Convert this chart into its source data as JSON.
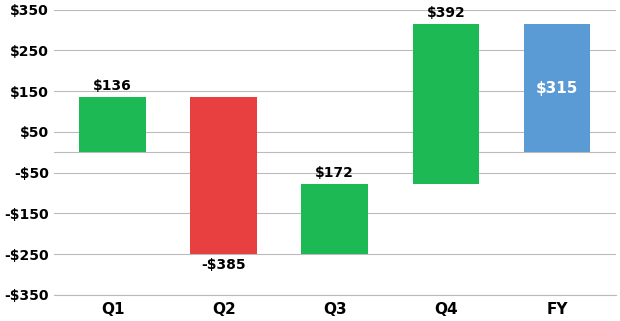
{
  "categories": [
    "Q1",
    "Q2",
    "Q3",
    "Q4",
    "FY"
  ],
  "values": [
    136,
    -385,
    172,
    392,
    315
  ],
  "labels": [
    "$136",
    "-$385",
    "$172",
    "$392",
    "$315"
  ],
  "colors": [
    "#1db954",
    "#e84040",
    "#1db954",
    "#1db954",
    "#5b9bd5"
  ],
  "label_colors": [
    "#000000",
    "#000000",
    "#000000",
    "#000000",
    "#ffffff"
  ],
  "ylim": [
    -350,
    350
  ],
  "yticks": [
    350,
    250,
    150,
    50,
    -50,
    -150,
    -250,
    -350
  ],
  "ytick_labels": [
    "$350",
    "$250",
    "$150",
    "$50",
    "-$50",
    "-$150",
    "-$250",
    "-$350"
  ],
  "background_color": "#ffffff",
  "grid_color": "#bbbbbb",
  "bar_width": 0.6,
  "figsize": [
    6.2,
    3.21
  ],
  "dpi": 100
}
